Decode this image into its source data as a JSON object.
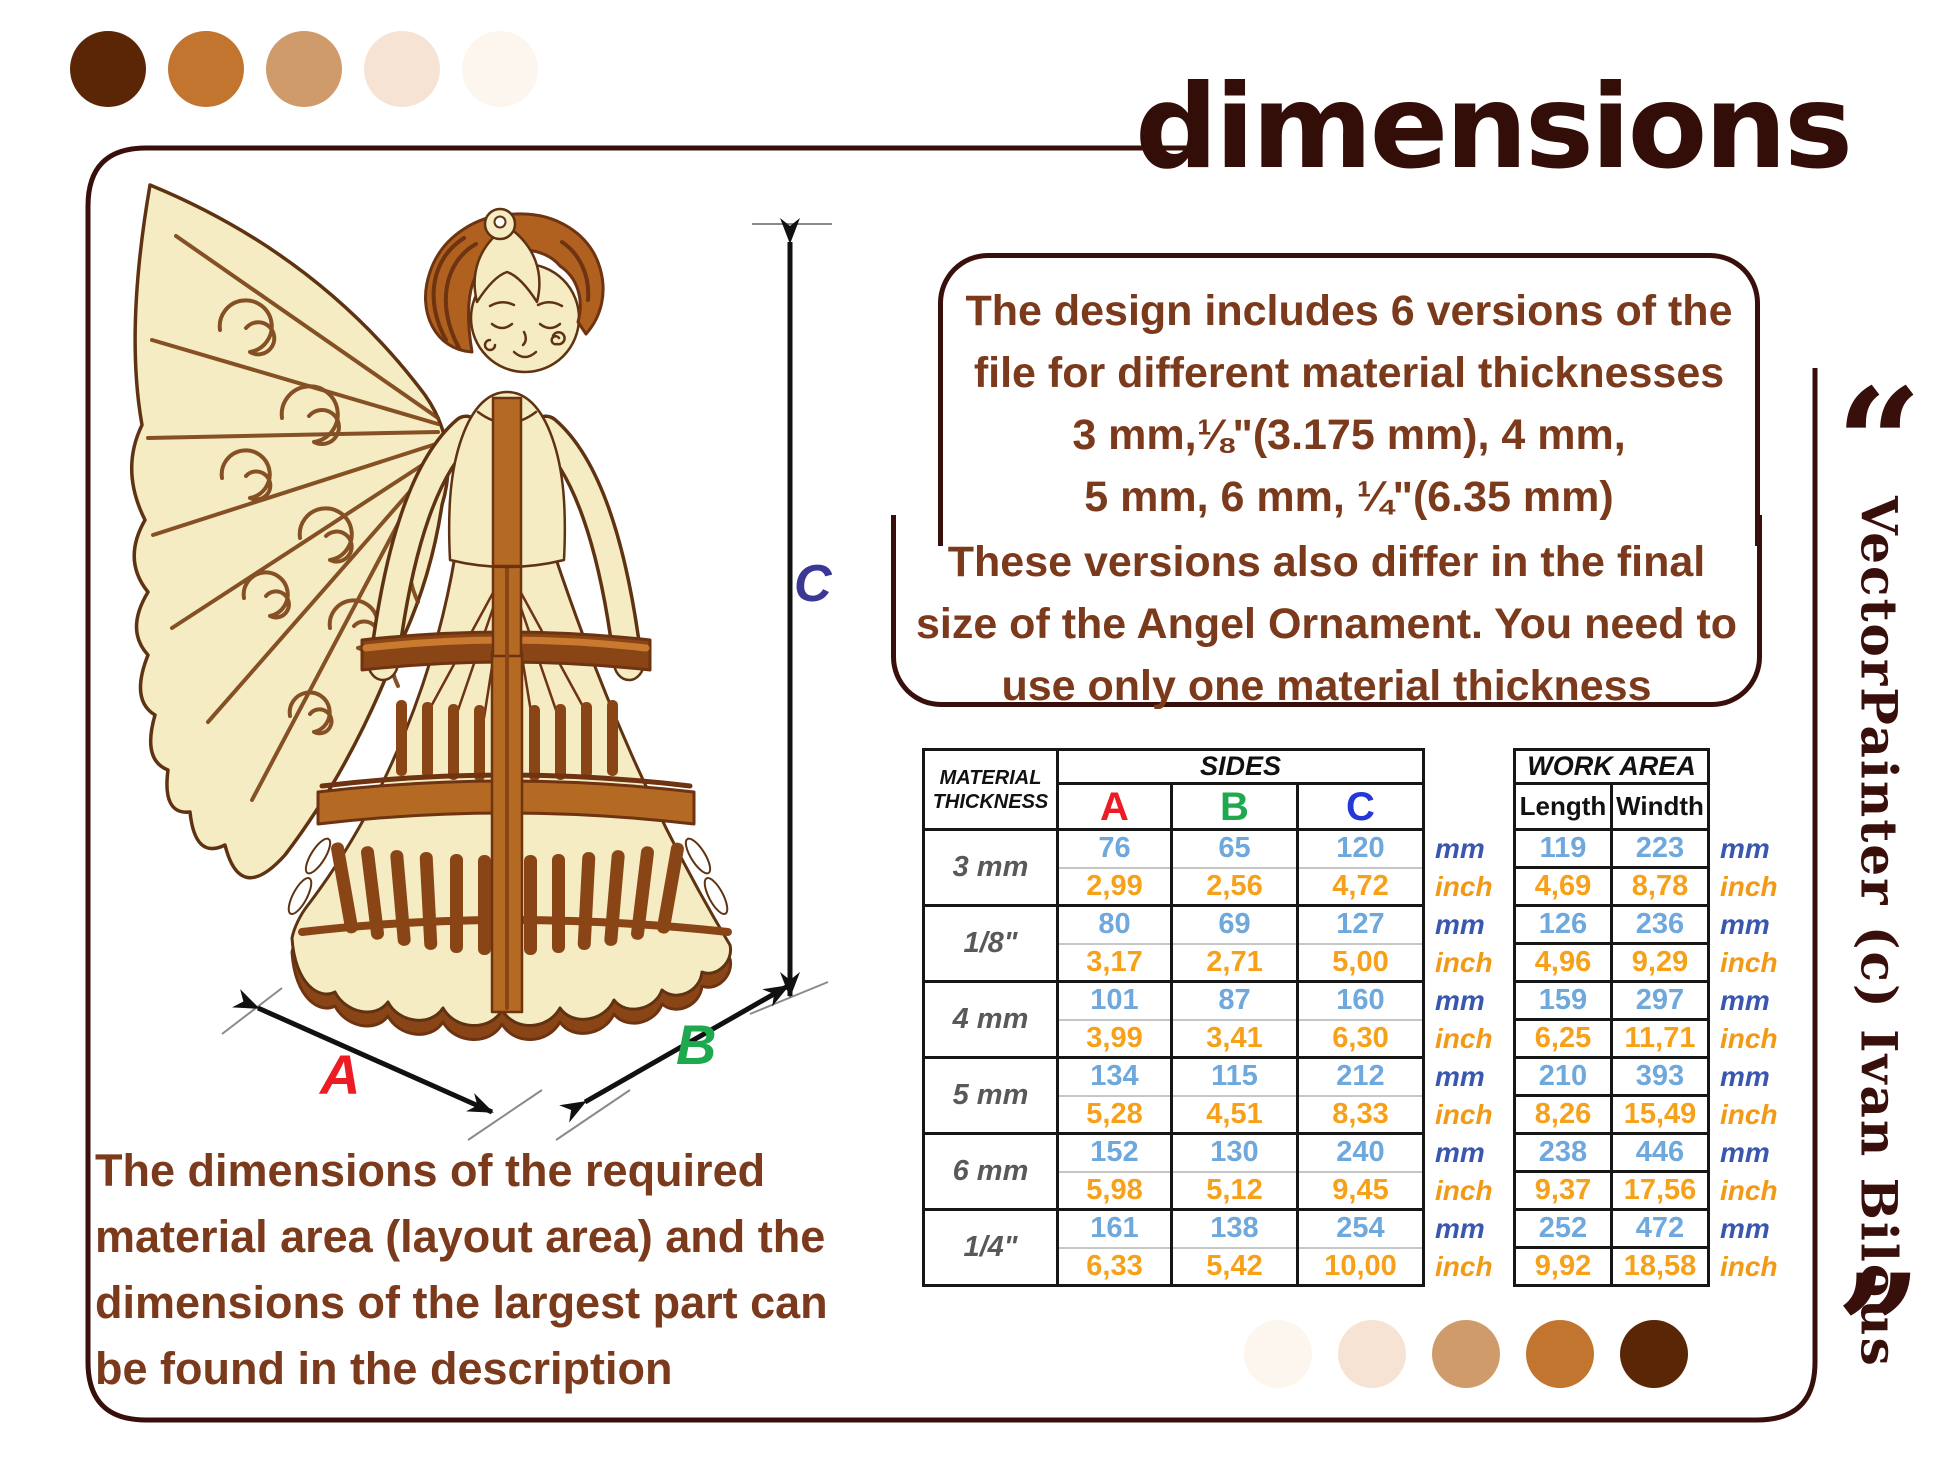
{
  "title": "dimensions",
  "colors": {
    "frame": "#380f0a",
    "title": "#330d08",
    "paragraph": "#7b3a1c",
    "dim_a": "#ed1c24",
    "dim_b": "#1fa94e",
    "dim_c": "#3c3794",
    "value_mm": "#6fa8dc",
    "value_inch": "#f7a11a",
    "unit_mm": "#3a57b0",
    "unit_inch": "#f29a16"
  },
  "palette_top": [
    "#5b2606",
    "#c1752f",
    "#cf9b6b",
    "#f6e3d3",
    "#fdf6ee"
  ],
  "palette_bottom": [
    "#fdf6ee",
    "#f6e3d3",
    "#cf9b6b",
    "#c1752f",
    "#5b2606"
  ],
  "info_box": {
    "paragraph1_lines": [
      "The design includes 6 versions of the",
      "file for different material thicknesses",
      "3 mm,⅛\"(3.175 mm), 4 mm,",
      "5 mm, 6 mm, ¼\"(6.35 mm)"
    ],
    "paragraph2_lines": [
      "These versions also differ in the final",
      "size of the Angel Ornament. You need to",
      "use only one material thickness"
    ]
  },
  "note_lines": [
    "The dimensions of the required",
    "material area (layout area) and the",
    "dimensions of the largest part can",
    "be found in the description"
  ],
  "credit": {
    "open_quote": "“",
    "text": "VectorPainter (c) Ivan Bilous",
    "close_quote": "”"
  },
  "dimension_labels": {
    "a": "A",
    "b": "B",
    "c": "C"
  },
  "units": {
    "metric": "mm",
    "imperial": "inch"
  },
  "sides_table": {
    "material_header_lines": [
      "MATERIAL",
      "THICKNESS"
    ],
    "header": "SIDES",
    "columns": [
      "A",
      "B",
      "C"
    ],
    "column_colors": [
      "#ed1c24",
      "#1fa94e",
      "#2438d8"
    ],
    "rows": [
      {
        "thickness": "3 mm",
        "mm": [
          "76",
          "65",
          "120"
        ],
        "inch": [
          "2,99",
          "2,56",
          "4,72"
        ]
      },
      {
        "thickness": "1/8\"",
        "mm": [
          "80",
          "69",
          "127"
        ],
        "inch": [
          "3,17",
          "2,71",
          "5,00"
        ]
      },
      {
        "thickness": "4 mm",
        "mm": [
          "101",
          "87",
          "160"
        ],
        "inch": [
          "3,99",
          "3,41",
          "6,30"
        ]
      },
      {
        "thickness": "5 mm",
        "mm": [
          "134",
          "115",
          "212"
        ],
        "inch": [
          "5,28",
          "4,51",
          "8,33"
        ]
      },
      {
        "thickness": "6 mm",
        "mm": [
          "152",
          "130",
          "240"
        ],
        "inch": [
          "5,98",
          "5,12",
          "9,45"
        ]
      },
      {
        "thickness": "1/4\"",
        "mm": [
          "161",
          "138",
          "254"
        ],
        "inch": [
          "6,33",
          "5,42",
          "10,00"
        ]
      }
    ]
  },
  "work_area_table": {
    "header": "WORK AREA",
    "columns": [
      "Length",
      "Windth"
    ],
    "rows": [
      {
        "mm": [
          "119",
          "223"
        ],
        "inch": [
          "4,69",
          "8,78"
        ]
      },
      {
        "mm": [
          "126",
          "236"
        ],
        "inch": [
          "4,96",
          "9,29"
        ]
      },
      {
        "mm": [
          "159",
          "297"
        ],
        "inch": [
          "6,25",
          "11,71"
        ]
      },
      {
        "mm": [
          "210",
          "393"
        ],
        "inch": [
          "8,26",
          "15,49"
        ]
      },
      {
        "mm": [
          "238",
          "446"
        ],
        "inch": [
          "9,37",
          "17,56"
        ]
      },
      {
        "mm": [
          "252",
          "472"
        ],
        "inch": [
          "9,92",
          "18,58"
        ]
      }
    ]
  }
}
